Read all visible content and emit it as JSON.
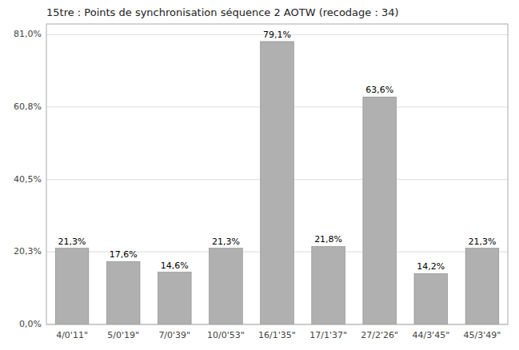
{
  "chart_data": {
    "type": "bar",
    "title": "15tre : Points de synchronisation séquence 2 AOTW (recodage : 34)",
    "categories": [
      "4/0'11\"",
      "5/0'19\"",
      "7/0'39\"",
      "10/0'53\"",
      "16/1'35\"",
      "17/1'37\"",
      "27/2'26\"",
      "44/3'45\"",
      "45/3'49\""
    ],
    "values": [
      21.3,
      17.6,
      14.6,
      21.3,
      79.1,
      21.8,
      63.6,
      14.2,
      21.3
    ],
    "value_labels": [
      "21,3%",
      "17,6%",
      "14,6%",
      "21,3%",
      "79,1%",
      "21,8%",
      "63,6%",
      "14,2%",
      "21,3%"
    ],
    "data_labels": true,
    "color": "#b0b0b0",
    "ylim": [
      0,
      84
    ],
    "yticks": [
      {
        "value": 0.0,
        "label": "0,0%"
      },
      {
        "value": 20.3,
        "label": "20,3%"
      },
      {
        "value": 40.5,
        "label": "40,5%"
      },
      {
        "value": 60.8,
        "label": "60,8%"
      },
      {
        "value": 81.0,
        "label": "81,0%"
      }
    ],
    "grid": true
  }
}
